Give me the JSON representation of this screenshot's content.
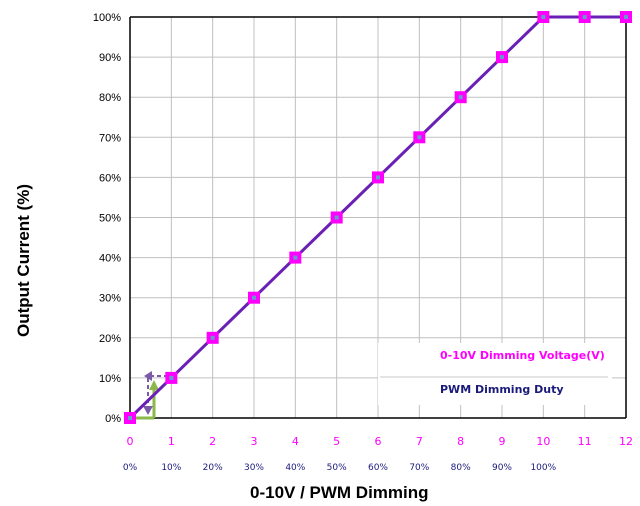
{
  "chart_data": {
    "type": "line",
    "xlabel": "0-10V / PWM Dimming",
    "ylabel": "Output Current (%)",
    "x_voltage_ticks": [
      "0",
      "1",
      "2",
      "3",
      "4",
      "5",
      "6",
      "7",
      "8",
      "9",
      "10",
      "11",
      "12"
    ],
    "x_pwm_ticks": [
      "0%",
      "10%",
      "20%",
      "30%",
      "40%",
      "50%",
      "60%",
      "70%",
      "80%",
      "90%",
      "100%"
    ],
    "y_ticks": [
      "0%",
      "10%",
      "20%",
      "30%",
      "40%",
      "50%",
      "60%",
      "70%",
      "80%",
      "90%",
      "100%"
    ],
    "xlim": [
      0,
      12
    ],
    "ylim": [
      0,
      100
    ],
    "grid": true,
    "legend_position": "bottom-right",
    "series": [
      {
        "name": "0-10V Dimming Voltage(V)",
        "color": "#ff00ff",
        "x": [
          0,
          1,
          2,
          3,
          4,
          5,
          6,
          7,
          8,
          9,
          10,
          11,
          12
        ],
        "y": [
          0,
          10,
          20,
          30,
          40,
          50,
          60,
          70,
          80,
          90,
          100,
          100,
          100
        ]
      },
      {
        "name": "PWM Dimming Duty",
        "color": "#1a1a7a",
        "x": [
          0,
          1,
          2,
          3,
          4,
          5,
          6,
          7,
          8,
          9,
          10
        ],
        "y": [
          0,
          10,
          20,
          30,
          40,
          50,
          60,
          70,
          80,
          90,
          100
        ]
      }
    ],
    "line_color": "#6a1fb5",
    "marker_color": "#ff00ff",
    "marker_inner_color": "#6699cc"
  }
}
